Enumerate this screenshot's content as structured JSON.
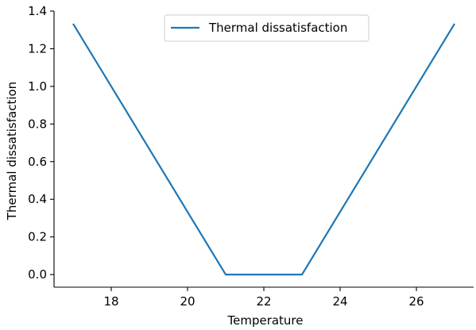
{
  "chart_data": {
    "type": "line",
    "title": "",
    "xlabel": "Temperature",
    "ylabel": "Thermal dissatisfaction",
    "xlim": [
      16.5,
      27.5
    ],
    "ylim": [
      -0.067,
      1.4
    ],
    "xticks": [
      18,
      20,
      22,
      24,
      26
    ],
    "yticks": [
      0.0,
      0.2,
      0.4,
      0.6,
      0.8,
      1.0,
      1.2,
      1.4
    ],
    "xtick_labels": [
      "18",
      "20",
      "22",
      "24",
      "26"
    ],
    "ytick_labels": [
      "0.0",
      "0.2",
      "0.4",
      "0.6",
      "0.8",
      "1.0",
      "1.2",
      "1.4"
    ],
    "grid": false,
    "legend_position": "upper center",
    "series": [
      {
        "name": "Thermal dissatisfaction",
        "color": "#1f77b4",
        "x": [
          17,
          21,
          23,
          27
        ],
        "y": [
          1.333,
          0.0,
          0.0,
          1.333
        ]
      }
    ]
  }
}
